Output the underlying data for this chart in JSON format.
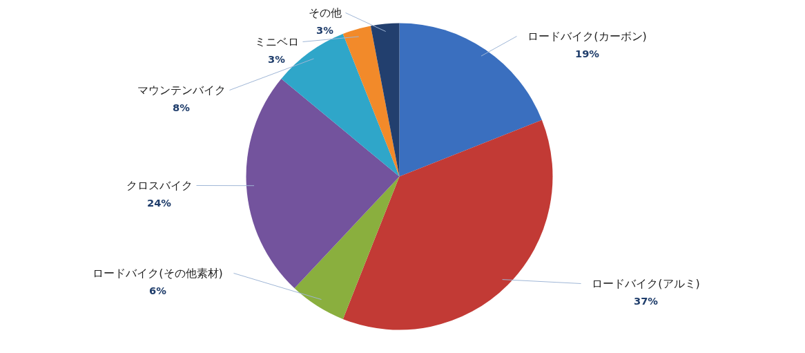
{
  "chart_data": {
    "type": "pie",
    "categories": [
      "ロードバイク(カーボン)",
      "ロードバイク(アルミ)",
      "ロードバイク(その他素材)",
      "クロスバイク",
      "マウンテンバイク",
      "ミニベロ",
      "その他"
    ],
    "values": [
      19,
      37,
      6,
      24,
      8,
      3,
      3
    ],
    "value_labels": [
      "19%",
      "37%",
      "6%",
      "24%",
      "8%",
      "3%",
      "3%"
    ],
    "colors": [
      "#3a6fbf",
      "#c23a35",
      "#8aaf3e",
      "#73539d",
      "#2fa6c9",
      "#f28a2a",
      "#223f6e"
    ]
  }
}
